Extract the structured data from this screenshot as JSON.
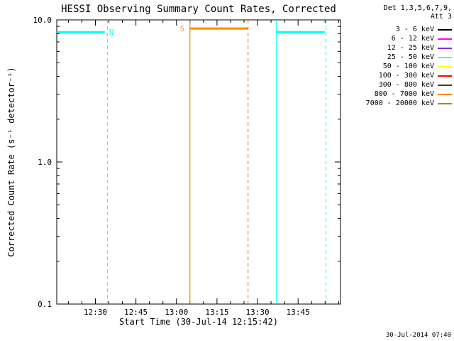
{
  "title": "HESSI Observing Summary Count Rates, Corrected",
  "footer_timestamp": "30-Jul-2014 07:40",
  "legend": {
    "header_line1": "Det 1,3,5,6,7,9,",
    "header_line2": "Att 3",
    "items": [
      {
        "label": "3 - 6 keV",
        "color": "#000000"
      },
      {
        "label": "6 - 12 keV",
        "color": "#ff00ff"
      },
      {
        "label": "12 - 25 keV",
        "color": "#8a2be2"
      },
      {
        "label": "25 - 50 keV",
        "color": "#00ffff"
      },
      {
        "label": "50 - 100 keV",
        "color": "#ffff00"
      },
      {
        "label": "100 - 300 keV",
        "color": "#ff0000"
      },
      {
        "label": "300 - 800 keV",
        "color": "#3a3a3a"
      },
      {
        "label": "800 - 7000 keV",
        "color": "#ff8800"
      },
      {
        "label": "7000 - 20000 keV",
        "color": "#999900"
      }
    ]
  },
  "chart_data": {
    "type": "line",
    "title": "HESSI Observing Summary Count Rates, Corrected",
    "x_axis": {
      "label": "Start Time (30-Jul-14 12:15:42)",
      "start": "12:15:42",
      "end": "14:00:42",
      "major_ticks": [
        "12:30",
        "12:45",
        "13:00",
        "13:15",
        "13:30",
        "13:45"
      ],
      "minor_tick_interval_min": 5
    },
    "y_axis": {
      "label": "Corrected Count Rate (s⁻¹ detector⁻¹)",
      "scale": "log",
      "min": 0.1,
      "max": 10,
      "major_ticks": [
        {
          "value": 10,
          "label": "10.0"
        },
        {
          "value": 1,
          "label": "1.0"
        },
        {
          "value": 0.1,
          "label": "0.1"
        }
      ]
    },
    "flag_segments": [
      {
        "flag": "N",
        "label_side": "right",
        "color": "#00ffff",
        "rate": 8.2,
        "start": "12:15:42",
        "end": "12:33:30"
      },
      {
        "flag": "S",
        "label_side": "left",
        "color": "#ff8800",
        "rate": 8.7,
        "start": "13:05:00",
        "end": "13:26:30"
      },
      {
        "flag": "",
        "label_side": "none",
        "color": "#00ffff",
        "rate": 8.2,
        "start": "13:37:00",
        "end": "13:55:00"
      }
    ],
    "flag_vlines": [
      {
        "time": "12:34:30",
        "color": "#00ffff",
        "style": "dashed"
      },
      {
        "time": "13:05:00",
        "color": "#aa8800",
        "style": "solid"
      },
      {
        "time": "13:26:30",
        "color": "#cc8800",
        "style": "dashed"
      },
      {
        "time": "13:37:00",
        "color": "#00ffff",
        "style": "solid"
      },
      {
        "time": "13:55:20",
        "color": "#00ffff",
        "style": "dashed"
      }
    ]
  }
}
